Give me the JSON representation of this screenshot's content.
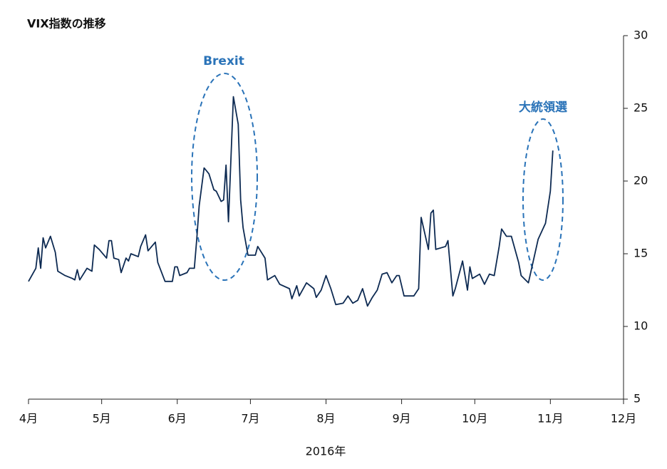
{
  "chart_data": {
    "type": "line",
    "title": "VIX指数の推移",
    "xlabel": "2016年",
    "annotations": [
      "Brexit",
      "大統領選"
    ],
    "x": [
      0,
      3,
      4,
      5,
      6,
      7,
      9,
      11,
      12,
      15,
      18,
      19,
      20,
      21,
      24,
      26,
      27,
      29,
      32,
      33,
      34,
      35,
      37,
      38,
      40,
      41,
      42,
      45,
      46,
      48,
      49,
      52,
      53,
      56,
      59,
      60,
      61,
      62,
      65,
      66,
      68,
      69,
      70,
      72,
      74,
      76,
      77,
      79,
      80,
      81,
      82,
      84,
      86,
      87,
      88,
      90,
      93,
      94,
      97,
      98,
      100,
      101,
      103,
      107,
      108,
      110,
      111,
      114,
      117,
      118,
      120,
      122,
      124,
      126,
      129,
      131,
      133,
      135,
      137,
      139,
      141,
      143,
      145,
      147,
      149,
      151,
      152,
      154,
      158,
      160,
      161,
      164,
      165,
      166,
      167,
      171,
      172,
      174,
      175,
      178,
      180,
      181,
      182,
      185,
      187,
      189,
      191,
      193,
      194,
      196,
      198,
      201,
      202,
      205,
      209,
      212,
      214,
      215
    ],
    "series": [
      {
        "name": "VIX",
        "color": "#0d2a52",
        "values": [
          13.1,
          14.0,
          15.4,
          14.0,
          16.1,
          15.4,
          16.2,
          15.1,
          13.8,
          13.5,
          13.3,
          13.2,
          13.9,
          13.2,
          14.0,
          13.8,
          15.6,
          15.3,
          14.7,
          15.9,
          15.9,
          14.7,
          14.6,
          13.7,
          14.7,
          14.5,
          15.0,
          14.8,
          15.5,
          16.3,
          15.2,
          15.8,
          14.4,
          13.1,
          13.1,
          14.1,
          14.1,
          13.5,
          13.7,
          14.0,
          14.0,
          16.0,
          18.3,
          20.9,
          20.5,
          19.4,
          19.3,
          18.6,
          18.7,
          21.1,
          17.2,
          25.8,
          23.9,
          18.7,
          16.8,
          14.9,
          14.9,
          15.5,
          14.7,
          13.2,
          13.4,
          13.5,
          12.9,
          12.6,
          11.9,
          12.8,
          12.1,
          13.0,
          12.6,
          12.0,
          12.5,
          13.5,
          12.6,
          11.5,
          11.6,
          12.1,
          11.6,
          11.8,
          12.6,
          11.4,
          12.0,
          12.5,
          13.6,
          13.7,
          13.0,
          13.5,
          13.5,
          12.1,
          12.1,
          12.6,
          17.5,
          15.3,
          17.8,
          18.0,
          15.3,
          15.5,
          15.9,
          12.1,
          12.6,
          14.5,
          12.5,
          14.1,
          13.3,
          13.6,
          12.9,
          13.6,
          13.5,
          15.5,
          16.7,
          16.2,
          16.2,
          14.4,
          13.5,
          13.0,
          16.0,
          17.1,
          19.3,
          22.1
        ]
      }
    ],
    "xlim": [
      0,
      244
    ],
    "xticks": [
      {
        "value": 0,
        "label": "4月"
      },
      {
        "value": 30,
        "label": "5月"
      },
      {
        "value": 61,
        "label": "6月"
      },
      {
        "value": 91,
        "label": "7月"
      },
      {
        "value": 122,
        "label": "8月"
      },
      {
        "value": 153,
        "label": "9月"
      },
      {
        "value": 183,
        "label": "10月"
      },
      {
        "value": 214,
        "label": "11月"
      },
      {
        "value": 244,
        "label": "12月"
      }
    ],
    "ylim": [
      5,
      30
    ],
    "yticks": [
      5,
      10,
      15,
      20,
      25,
      30
    ],
    "grid": false
  }
}
